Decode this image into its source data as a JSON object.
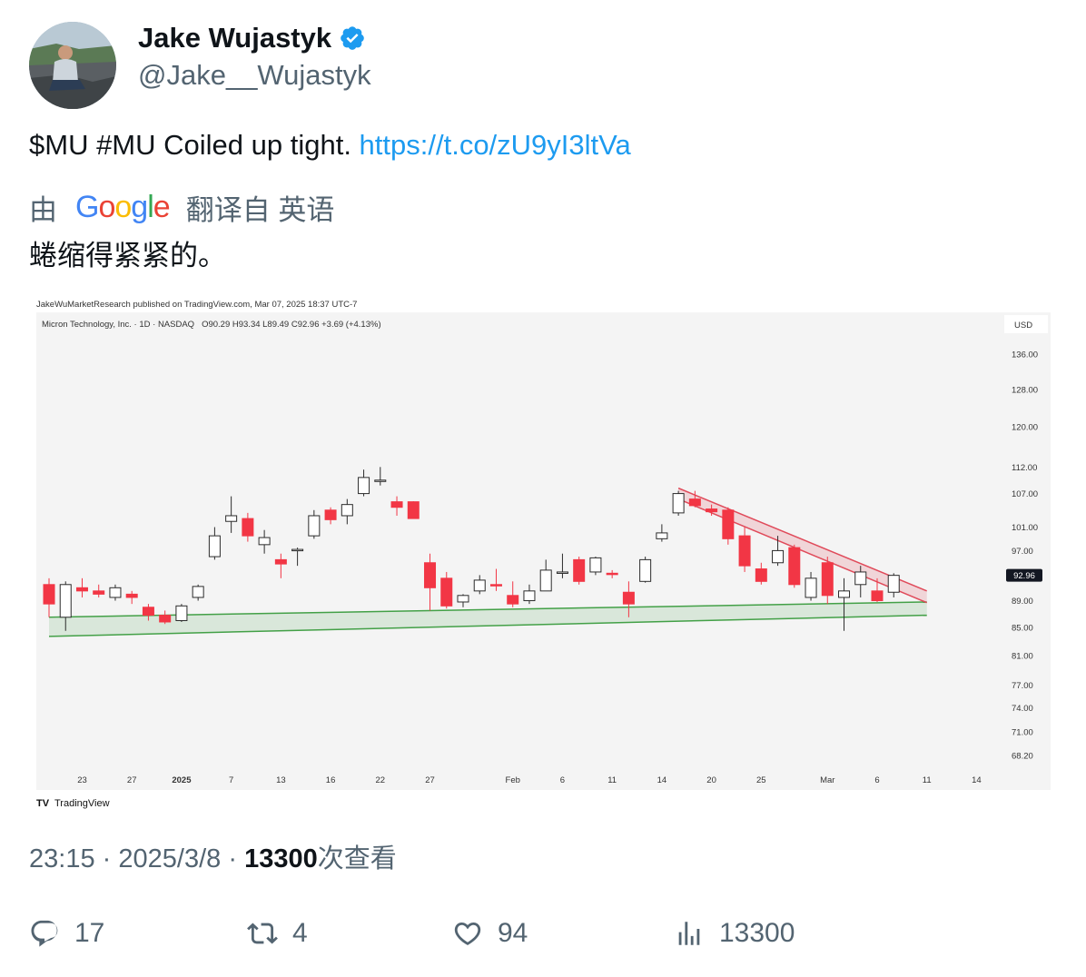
{
  "author": {
    "display_name": "Jake Wujastyk",
    "handle": "@Jake__Wujastyk",
    "verified": true,
    "verified_color": "#1d9bf0"
  },
  "tweet": {
    "text": "$MU #MU Coiled up tight. ",
    "link": "https://t.co/zU9yI3ltVa",
    "link_color": "#1d9bf0"
  },
  "translation": {
    "prefix": "由",
    "provider": "Google",
    "suffix": "翻译自 英语",
    "text": "蜷缩得紧紧的。"
  },
  "chart_header": {
    "published": "JakeWuMarketResearch published on TradingView.com, Mar 07, 2025 18:37 UTC-7",
    "symbol": "Micron Technology, Inc. · 1D · NASDAQ",
    "ohlc": "O90.29  H93.34  L89.49  C92.96  +3.69 (+4.13%)",
    "currency": "USD",
    "brand": "TradingView"
  },
  "chart_data": {
    "type": "candlestick",
    "title": "Micron Technology, Inc. · 1D · NASDAQ",
    "currency": "USD",
    "last_price": 92.96,
    "y_ticks": [
      136.0,
      128.0,
      120.0,
      112.0,
      107.0,
      101.0,
      97.0,
      89.0,
      85.0,
      81.0,
      77.0,
      74.0,
      71.0,
      68.2
    ],
    "x_ticks": [
      {
        "label": "23",
        "bar": 2
      },
      {
        "label": "27",
        "bar": 5
      },
      {
        "label": "2025",
        "bar": 8,
        "bold": true
      },
      {
        "label": "7",
        "bar": 11
      },
      {
        "label": "13",
        "bar": 14
      },
      {
        "label": "16",
        "bar": 17
      },
      {
        "label": "22",
        "bar": 20
      },
      {
        "label": "27",
        "bar": 23
      },
      {
        "label": "Feb",
        "bar": 28
      },
      {
        "label": "6",
        "bar": 31
      },
      {
        "label": "11",
        "bar": 34
      },
      {
        "label": "14",
        "bar": 37
      },
      {
        "label": "20",
        "bar": 40
      },
      {
        "label": "25",
        "bar": 43
      },
      {
        "label": "Mar",
        "bar": 47
      },
      {
        "label": "6",
        "bar": 50
      },
      {
        "label": "11",
        "bar": 53
      },
      {
        "label": "14",
        "bar": 56
      }
    ],
    "candles": [
      {
        "o": 91.5,
        "h": 92.5,
        "l": 86.5,
        "c": 88.5
      },
      {
        "o": 86.5,
        "h": 92.0,
        "l": 84.5,
        "c": 91.5
      },
      {
        "o": 91.0,
        "h": 92.5,
        "l": 89.5,
        "c": 90.5
      },
      {
        "o": 90.5,
        "h": 91.5,
        "l": 89.5,
        "c": 90.0
      },
      {
        "o": 89.5,
        "h": 91.5,
        "l": 89.0,
        "c": 91.0
      },
      {
        "o": 90.0,
        "h": 90.5,
        "l": 88.5,
        "c": 89.5
      },
      {
        "o": 88.0,
        "h": 88.5,
        "l": 86.0,
        "c": 86.8
      },
      {
        "o": 86.8,
        "h": 87.5,
        "l": 85.5,
        "c": 85.8
      },
      {
        "o": 86.0,
        "h": 88.5,
        "l": 85.8,
        "c": 88.2
      },
      {
        "o": 89.5,
        "h": 91.5,
        "l": 89.0,
        "c": 91.2
      },
      {
        "o": 96.0,
        "h": 101.0,
        "l": 95.5,
        "c": 99.5
      },
      {
        "o": 102.0,
        "h": 106.5,
        "l": 100.0,
        "c": 103.0
      },
      {
        "o": 102.5,
        "h": 103.5,
        "l": 98.5,
        "c": 99.5
      },
      {
        "o": 98.0,
        "h": 100.5,
        "l": 96.5,
        "c": 99.2
      },
      {
        "o": 95.5,
        "h": 96.5,
        "l": 92.5,
        "c": 94.8
      },
      {
        "o": 97.0,
        "h": 97.5,
        "l": 94.5,
        "c": 97.2
      },
      {
        "o": 99.5,
        "h": 104.0,
        "l": 99.0,
        "c": 103.0
      },
      {
        "o": 104.0,
        "h": 104.5,
        "l": 101.5,
        "c": 102.3
      },
      {
        "o": 103.0,
        "h": 106.0,
        "l": 101.5,
        "c": 105.0
      },
      {
        "o": 107.0,
        "h": 111.5,
        "l": 106.5,
        "c": 110.0
      },
      {
        "o": 109.5,
        "h": 112.0,
        "l": 108.5,
        "c": 109.5
      },
      {
        "o": 105.5,
        "h": 106.5,
        "l": 103.0,
        "c": 104.5
      },
      {
        "o": 105.5,
        "h": 105.6,
        "l": 102.5,
        "c": 102.5
      },
      {
        "o": 95.0,
        "h": 96.5,
        "l": 87.5,
        "c": 91.0
      },
      {
        "o": 92.5,
        "h": 93.5,
        "l": 87.8,
        "c": 88.2
      },
      {
        "o": 88.8,
        "h": 90.0,
        "l": 88.0,
        "c": 89.8
      },
      {
        "o": 90.5,
        "h": 93.0,
        "l": 90.0,
        "c": 92.2
      },
      {
        "o": 91.5,
        "h": 94.0,
        "l": 90.5,
        "c": 91.3
      },
      {
        "o": 89.8,
        "h": 92.0,
        "l": 88.0,
        "c": 88.5
      },
      {
        "o": 89.0,
        "h": 91.5,
        "l": 88.5,
        "c": 90.5
      },
      {
        "o": 90.5,
        "h": 95.5,
        "l": 90.5,
        "c": 93.8
      },
      {
        "o": 93.5,
        "h": 96.5,
        "l": 92.5,
        "c": 93.5
      },
      {
        "o": 95.5,
        "h": 96.0,
        "l": 91.5,
        "c": 92.0
      },
      {
        "o": 93.5,
        "h": 96.0,
        "l": 93.0,
        "c": 95.8
      },
      {
        "o": 93.3,
        "h": 93.8,
        "l": 92.5,
        "c": 93.2
      },
      {
        "o": 90.3,
        "h": 92.0,
        "l": 86.5,
        "c": 88.5
      },
      {
        "o": 92.0,
        "h": 96.0,
        "l": 91.8,
        "c": 95.5
      },
      {
        "o": 99.0,
        "h": 101.5,
        "l": 98.5,
        "c": 100.0
      },
      {
        "o": 103.5,
        "h": 107.5,
        "l": 103.0,
        "c": 107.0
      },
      {
        "o": 106.0,
        "h": 107.5,
        "l": 104.5,
        "c": 104.8
      },
      {
        "o": 104.2,
        "h": 105.0,
        "l": 103.0,
        "c": 103.7
      },
      {
        "o": 104.0,
        "h": 104.5,
        "l": 98.0,
        "c": 99.0
      },
      {
        "o": 99.5,
        "h": 101.0,
        "l": 93.5,
        "c": 94.5
      },
      {
        "o": 94.0,
        "h": 95.0,
        "l": 91.5,
        "c": 92.0
      },
      {
        "o": 95.0,
        "h": 99.5,
        "l": 94.5,
        "c": 97.0
      },
      {
        "o": 97.5,
        "h": 98.0,
        "l": 91.0,
        "c": 91.5
      },
      {
        "o": 89.5,
        "h": 93.5,
        "l": 89.0,
        "c": 92.5
      },
      {
        "o": 95.0,
        "h": 96.0,
        "l": 88.5,
        "c": 89.8
      },
      {
        "o": 89.5,
        "h": 92.5,
        "l": 84.5,
        "c": 90.5
      },
      {
        "o": 91.5,
        "h": 94.5,
        "l": 89.5,
        "c": 93.5
      },
      {
        "o": 90.5,
        "h": 92.5,
        "l": 88.8,
        "c": 89.0
      },
      {
        "o": 90.3,
        "h": 93.3,
        "l": 89.5,
        "c": 92.96
      }
    ],
    "resistance_channel": {
      "color": "#e04a5a",
      "upper": [
        [
          38,
          108.0
        ],
        [
          53,
          90.5
        ]
      ],
      "lower": [
        [
          38,
          106.0
        ],
        [
          53,
          88.7
        ]
      ]
    },
    "support_channel": {
      "color": "#43a047",
      "upper": [
        [
          0,
          86.5
        ],
        [
          53,
          88.8
        ]
      ],
      "lower": [
        [
          0,
          83.7
        ],
        [
          53,
          86.8
        ]
      ]
    },
    "colors": {
      "up_fill": "#ffffff",
      "up_stroke": "#2b2b2b",
      "down_fill": "#f23645",
      "bg": "#f4f4f4"
    }
  },
  "meta": {
    "time": "23:15",
    "date": "2025/3/8",
    "separator": "·",
    "views": "13300",
    "views_suffix": "次查看"
  },
  "actions": {
    "replies": "17",
    "retweets": "4",
    "likes": "94",
    "views": "13300"
  }
}
